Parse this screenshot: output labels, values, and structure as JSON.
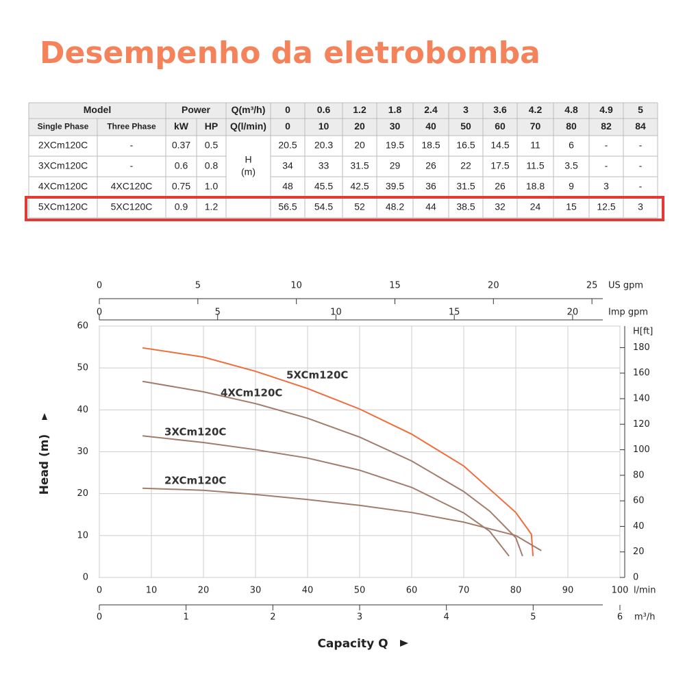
{
  "title": "Desempenho da eletrobomba",
  "table": {
    "header_row1": {
      "model": "Model",
      "power": "Power",
      "q": "Q(m³/h)",
      "values": [
        "0",
        "0.6",
        "1.2",
        "1.8",
        "2.4",
        "3",
        "3.6",
        "4.2",
        "4.8",
        "4.9",
        "5"
      ]
    },
    "header_row2": {
      "single_phase": "Single Phase",
      "three_phase": "Three Phase",
      "kw": "kW",
      "hp": "HP",
      "q": "Q(l/min)",
      "values": [
        "0",
        "10",
        "20",
        "30",
        "40",
        "50",
        "60",
        "70",
        "80",
        "82",
        "84"
      ]
    },
    "h_label": [
      "H",
      "(m)"
    ],
    "rows": [
      {
        "single_phase": "2XCm120C",
        "three_phase": "-",
        "kw": "0.37",
        "hp": "0.5",
        "heads": [
          "20.5",
          "20.3",
          "20",
          "19.5",
          "18.5",
          "16.5",
          "14.5",
          "11",
          "6",
          "-",
          "-"
        ]
      },
      {
        "single_phase": "3XCm120C",
        "three_phase": "-",
        "kw": "0.6",
        "hp": "0.8",
        "heads": [
          "34",
          "33",
          "31.5",
          "29",
          "26",
          "22",
          "17.5",
          "11.5",
          "3.5",
          "-",
          "-"
        ]
      },
      {
        "single_phase": "4XCm120C",
        "three_phase": "4XC120C",
        "kw": "0.75",
        "hp": "1.0",
        "heads": [
          "48",
          "45.5",
          "42.5",
          "39.5",
          "36",
          "31.5",
          "26",
          "18.8",
          "9",
          "3",
          "-"
        ]
      },
      {
        "single_phase": "5XCm120C",
        "three_phase": "5XC120C",
        "kw": "0.9",
        "hp": "1.2",
        "heads": [
          "56.5",
          "54.5",
          "52",
          "48.2",
          "44",
          "38.5",
          "32",
          "24",
          "15",
          "12.5",
          "3"
        ]
      }
    ]
  },
  "chart_data": {
    "type": "line",
    "xlabel": "Capacity Q",
    "xunit": "l/min",
    "ylabel": "Head (m)",
    "xlim": [
      0,
      100
    ],
    "xticks": [
      0,
      10,
      20,
      30,
      40,
      50,
      60,
      70,
      80,
      90,
      100
    ],
    "ylim": [
      0,
      60
    ],
    "yticks": [
      0,
      10,
      20,
      30,
      40,
      50,
      60
    ],
    "y2label": "H[ft]",
    "y2lim": [
      0,
      196.85
    ],
    "y2ticks": [
      0,
      20,
      40,
      60,
      80,
      100,
      120,
      140,
      160,
      180
    ],
    "us_gpm": {
      "label": "US gpm",
      "lim": [
        0,
        26.42
      ],
      "ticks": [
        0,
        5,
        10,
        15,
        20,
        25
      ]
    },
    "imp_gpm": {
      "label": "Imp gpm",
      "lim": [
        0,
        22
      ],
      "ticks": [
        0,
        5,
        10,
        15,
        20
      ]
    },
    "m3h": {
      "label": "m³/h",
      "lim": [
        0,
        6
      ],
      "ticks": [
        0,
        1,
        2,
        3,
        4,
        5,
        6
      ]
    },
    "grid": true,
    "series": [
      {
        "name": "5XCm120C",
        "color": "#f26b3a",
        "x": [
          8.3,
          20,
          30,
          40,
          50,
          60,
          70,
          80,
          83,
          83.3
        ],
        "values": [
          54.8,
          52.6,
          49.2,
          45.1,
          40.2,
          34.2,
          26.6,
          15.5,
          10.3,
          5.1
        ]
      },
      {
        "name": "4XCm120C",
        "color": "#a37b6a",
        "x": [
          8.3,
          20,
          30,
          40,
          50,
          60,
          70,
          75,
          80,
          81.3
        ],
        "values": [
          46.8,
          44.3,
          41.5,
          38,
          33.5,
          27.8,
          20.5,
          15.8,
          9.5,
          5.1
        ]
      },
      {
        "name": "3XCm120C",
        "color": "#a37b6a",
        "x": [
          8.3,
          20,
          30,
          40,
          50,
          60,
          70,
          75,
          78.7
        ],
        "values": [
          33.8,
          32.2,
          30.5,
          28.5,
          25.6,
          21.5,
          15.4,
          11,
          5.1
        ]
      },
      {
        "name": "2XCm120C",
        "color": "#a37b6a",
        "x": [
          8.3,
          20,
          30,
          40,
          50,
          60,
          70,
          80,
          84.9
        ],
        "values": [
          21.3,
          20.8,
          19.8,
          18.6,
          17.2,
          15.5,
          13.2,
          10,
          6.4
        ]
      }
    ]
  }
}
